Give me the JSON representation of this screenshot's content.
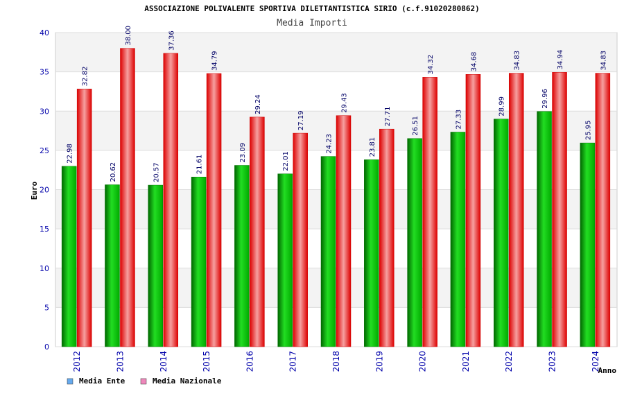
{
  "chart_data": {
    "type": "bar",
    "title": "ASSOCIAZIONE POLIVALENTE SPORTIVA DILETTANTISTICA SIRIO (c.f.91020280862)",
    "subtitle": "Media Importi",
    "xlabel": "Anno",
    "ylabel": "Euro",
    "ylim": [
      0,
      40
    ],
    "yticks": [
      0,
      5,
      10,
      15,
      20,
      25,
      30,
      35,
      40
    ],
    "categories": [
      "2012",
      "2013",
      "2014",
      "2015",
      "2016",
      "2017",
      "2018",
      "2019",
      "2020",
      "2021",
      "2022",
      "2023",
      "2024"
    ],
    "series": [
      {
        "name": "Media Ente",
        "values": [
          22.98,
          20.62,
          20.57,
          21.61,
          23.09,
          22.01,
          24.23,
          23.81,
          26.51,
          27.33,
          28.99,
          29.96,
          25.95
        ],
        "labels": [
          "22.98",
          "20.62",
          "20.57",
          "21.61",
          "23.09",
          "22.01",
          "24.23",
          "23.81",
          "26.51",
          "27.33",
          "28.99",
          "29.96",
          "25.95"
        ],
        "color": "#00bb00",
        "legend_color": "#66aaee"
      },
      {
        "name": "Media Nazionale",
        "values": [
          32.82,
          38.0,
          37.36,
          34.79,
          29.24,
          27.19,
          29.43,
          27.71,
          34.32,
          34.68,
          34.83,
          34.94,
          34.83
        ],
        "labels": [
          "32.82",
          "38.00",
          "37.36",
          "34.79",
          "29.24",
          "27.19",
          "29.43",
          "27.71",
          "34.32",
          "34.68",
          "34.83",
          "34.94",
          "34.83"
        ],
        "color": "#ee1111",
        "legend_color": "#ee88bb"
      }
    ],
    "grid": true,
    "legend": "bottom-left"
  }
}
